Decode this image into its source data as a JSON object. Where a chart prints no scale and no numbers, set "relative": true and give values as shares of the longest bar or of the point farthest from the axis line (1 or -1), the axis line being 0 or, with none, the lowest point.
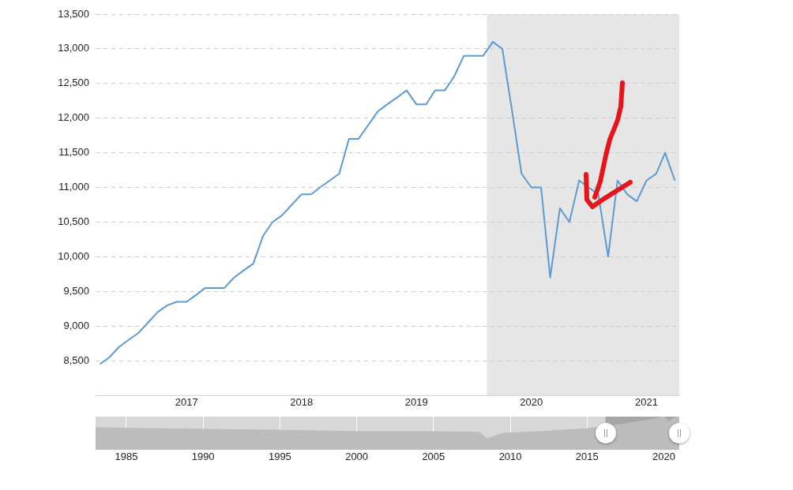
{
  "chart_data": [
    {
      "type": "line",
      "color": "#5b9bd5",
      "marker": "none",
      "line_style": "solid",
      "grid": "y",
      "legend": false,
      "x": [
        "2016-04",
        "2016-05",
        "2016-06",
        "2016-07",
        "2016-08",
        "2016-09",
        "2016-10",
        "2016-11",
        "2016-12",
        "2017-01",
        "2017-02",
        "2017-03",
        "2017-04",
        "2017-05",
        "2017-06",
        "2017-07",
        "2017-08",
        "2017-09",
        "2017-10",
        "2017-11",
        "2017-12",
        "2018-01",
        "2018-02",
        "2018-03",
        "2018-04",
        "2018-05",
        "2018-06",
        "2018-07",
        "2018-08",
        "2018-09",
        "2018-10",
        "2018-11",
        "2018-12",
        "2019-01",
        "2019-02",
        "2019-03",
        "2019-04",
        "2019-05",
        "2019-06",
        "2019-07",
        "2019-08",
        "2019-09",
        "2019-10",
        "2019-11",
        "2019-12",
        "2020-01",
        "2020-02",
        "2020-03",
        "2020-04",
        "2020-05",
        "2020-06",
        "2020-07",
        "2020-08",
        "2020-09",
        "2020-10",
        "2020-11",
        "2020-12",
        "2021-01",
        "2021-02",
        "2021-03",
        "2021-04"
      ],
      "values": [
        8450,
        8550,
        8700,
        8800,
        8900,
        9050,
        9200,
        9300,
        9350,
        9350,
        9450,
        9550,
        9550,
        9550,
        9700,
        9800,
        9900,
        10300,
        10500,
        10600,
        10750,
        10900,
        10900,
        11000,
        11100,
        11200,
        11700,
        11700,
        11900,
        12100,
        12200,
        12300,
        12400,
        12200,
        12200,
        12400,
        12400,
        12600,
        12900,
        12900,
        12900,
        13100,
        13000,
        12100,
        11200,
        11000,
        11000,
        9700,
        10700,
        10500,
        11100,
        11000,
        10900,
        10000,
        11100,
        10900,
        10800,
        11100,
        11200,
        11500,
        11100
      ],
      "xlim": [
        "2016-03-18",
        "2021-04-15"
      ],
      "xticks": [
        "2017",
        "2018",
        "2019",
        "2020",
        "2021"
      ],
      "ylim": [
        8000,
        13500
      ],
      "yticks": [
        {
          "value": 8500,
          "label": "8,500"
        },
        {
          "value": 9000,
          "label": "9,000"
        },
        {
          "value": 9500,
          "label": "9,500"
        },
        {
          "value": 10000,
          "label": "10,000"
        },
        {
          "value": 10500,
          "label": "10,500"
        },
        {
          "value": 11000,
          "label": "11,000"
        },
        {
          "value": 11500,
          "label": "11,500"
        },
        {
          "value": 12000,
          "label": "12,000"
        },
        {
          "value": 12500,
          "label": "12,500"
        },
        {
          "value": 13000,
          "label": "13,000"
        },
        {
          "value": 13500,
          "label": "13,500"
        }
      ],
      "bands": [
        {
          "axis": "x",
          "from": "2019-08-13",
          "to": "2021-04-15",
          "color": "#e6e6e6"
        }
      ]
    },
    {
      "type": "area",
      "relative": true,
      "color": "#bcbcbc",
      "grid": "x",
      "legend": false,
      "tick_labels": "x",
      "x": [
        1983,
        1985,
        1990,
        1995,
        2000,
        2005,
        2008,
        2008.5,
        2009.5,
        2012,
        2015,
        2017,
        2019,
        2020,
        2020.3,
        2020.6,
        2021
      ],
      "values": [
        0.67,
        0.65,
        0.62,
        0.59,
        0.55,
        0.55,
        0.53,
        0.33,
        0.5,
        0.55,
        0.64,
        0.75,
        0.9,
        1,
        0.85,
        0.95,
        1
      ],
      "xlim": [
        1983,
        2021
      ],
      "xticks": [
        1985,
        1990,
        1995,
        2000,
        2005,
        2010,
        2015,
        2020
      ],
      "bands": [
        {
          "axis": "x",
          "from": 2016.2,
          "to": 2021,
          "color": "#a6a6a6"
        }
      ]
    }
  ]
}
